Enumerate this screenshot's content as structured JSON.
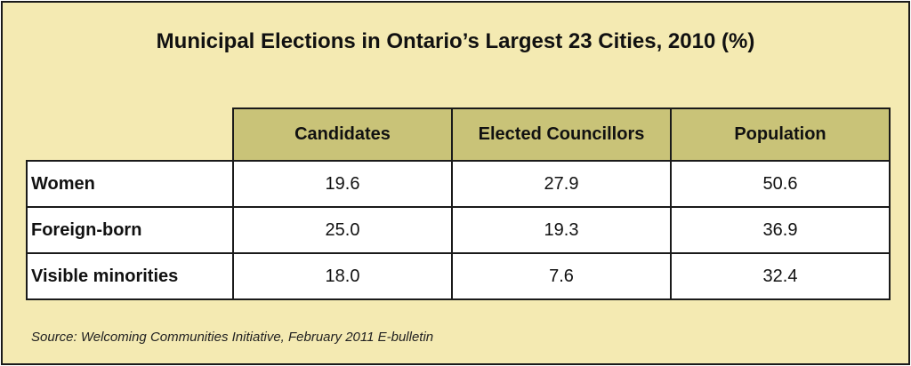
{
  "chart_data": {
    "type": "table",
    "title": "Municipal Elections in Ontario’s Largest 23 Cities, 2010 (%)",
    "columns": [
      "Candidates",
      "Elected Councillors",
      "Population"
    ],
    "rows": [
      {
        "label": "Women",
        "values": [
          "19.6",
          "27.9",
          "50.6"
        ]
      },
      {
        "label": "Foreign-born",
        "values": [
          "25.0",
          "19.3",
          "36.9"
        ]
      },
      {
        "label": "Visible minorities",
        "values": [
          "18.0",
          "7.6",
          "32.4"
        ]
      }
    ],
    "source": "Source: Welcoming Communities Initiative, February 2011 E-bulletin"
  },
  "colors": {
    "background": "#f4eab2",
    "header_fill": "#c9c378",
    "cell_fill": "#ffffff",
    "border": "#1a1a1a"
  }
}
